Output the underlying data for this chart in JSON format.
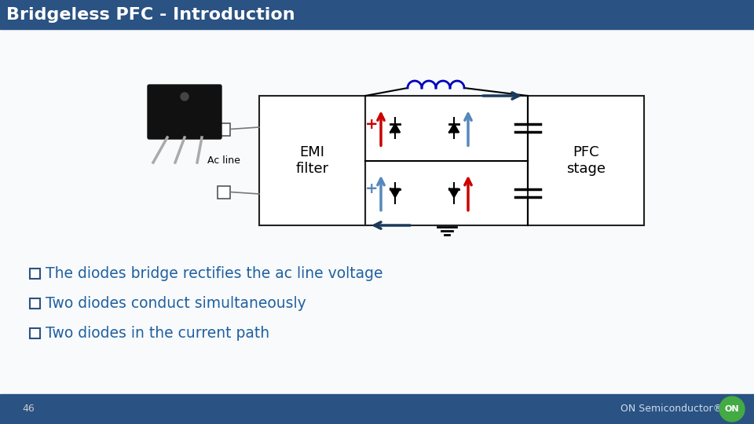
{
  "title": "Bridgeless PFC - Introduction",
  "title_bg_top": "#2d5f8a",
  "title_bg_bot": "#1a3d5c",
  "title_color": "#ffffff",
  "footer_bg": "#2a5080",
  "slide_bg": "#e8eef5",
  "content_bg": "#ffffff",
  "text_color_blue": "#2060a0",
  "bullet_points": [
    "The diodes bridge rectifies the ac line voltage",
    "Two diodes conduct simultaneously",
    "Two diodes in the current path"
  ],
  "emi_label": "EMI\nfilter",
  "pfc_label": "PFC\nstage",
  "ac_line_label": "Ac line",
  "page_number": "46",
  "on_semi_text": "ON Semiconductor®",
  "arrow_color": "#1a3a5c",
  "red_color": "#cc0000",
  "blue_color": "#5588bb",
  "dark_blue": "#1a3a5c",
  "diode_color": "#000000",
  "coil_color": "#0000bb"
}
